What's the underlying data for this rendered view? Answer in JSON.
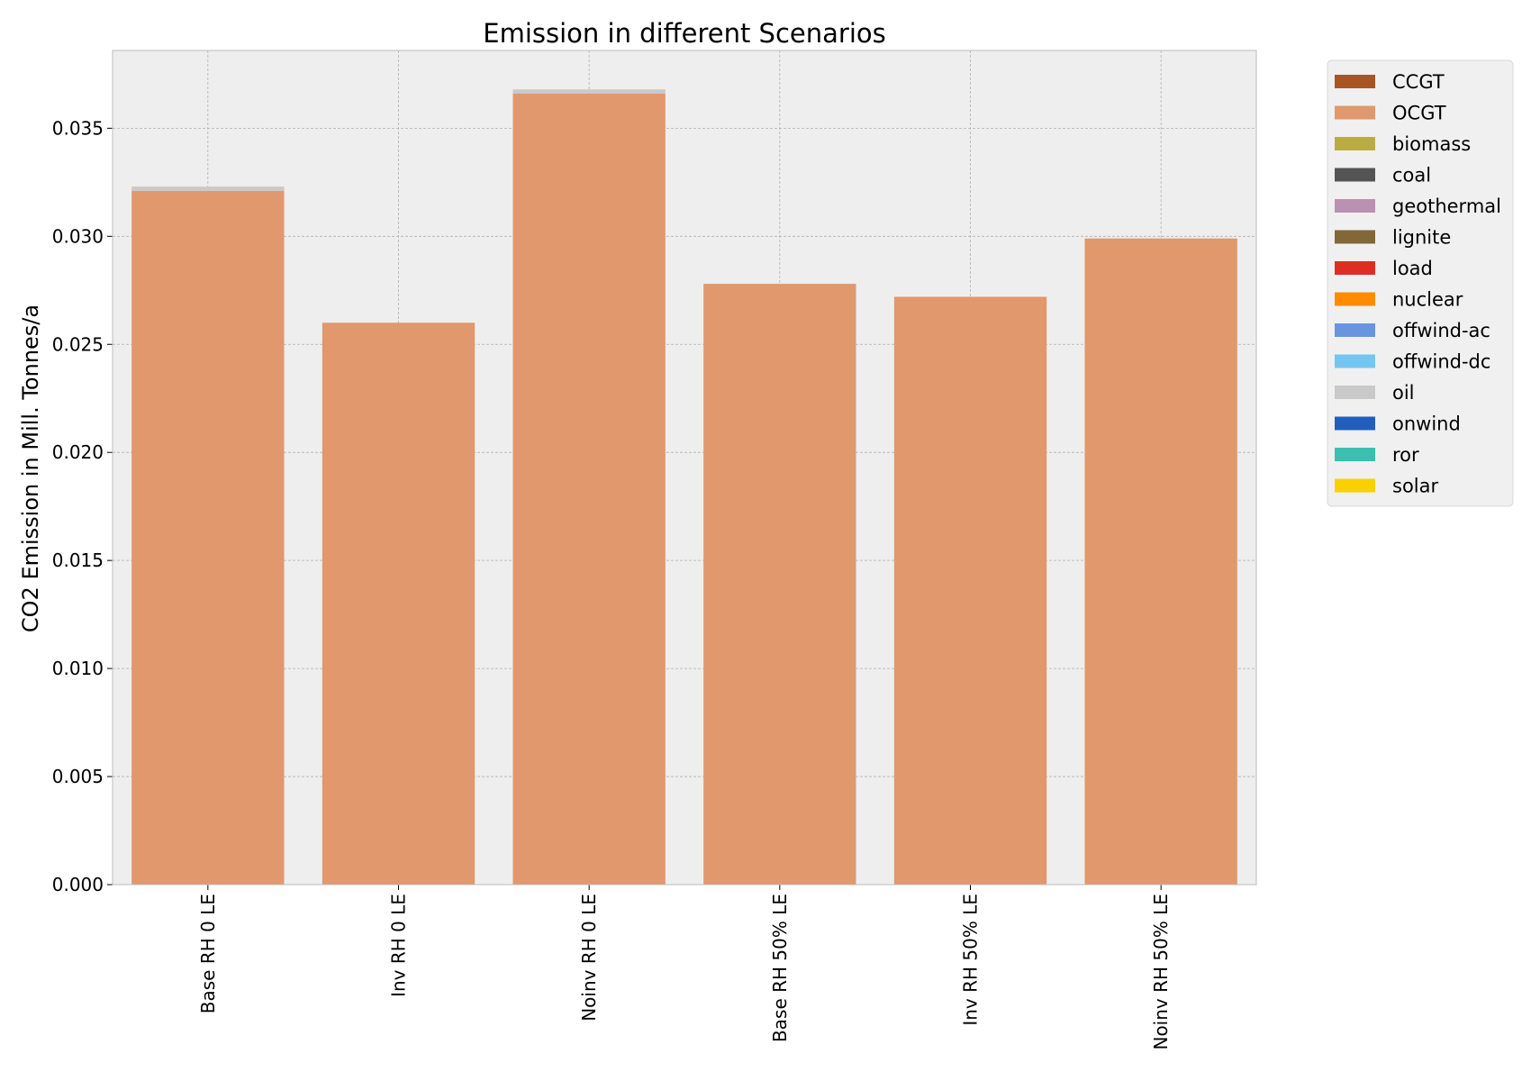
{
  "chart_data": {
    "type": "bar",
    "stacked": true,
    "title": "Emission in different Scenarios",
    "xlabel": "",
    "ylabel": "CO2 Emission in Mill. Tonnes/a",
    "ylim": [
      0,
      0.0386
    ],
    "yticks": [
      "0.000",
      "0.005",
      "0.010",
      "0.015",
      "0.020",
      "0.025",
      "0.030",
      "0.035"
    ],
    "grid": true,
    "legend_position": "outside-top-right",
    "categories": [
      "Base RH 0 LE",
      "Inv RH 0 LE",
      "Noinv RH 0 LE",
      "Base RH 50% LE",
      "Inv RH 50% LE",
      "Noinv RH 50% LE"
    ],
    "series": [
      {
        "name": "CCGT",
        "color": "#a85522",
        "values": [
          0,
          0,
          0,
          0,
          0,
          0
        ]
      },
      {
        "name": "OCGT",
        "color": "#e0986c",
        "values": [
          0.0321,
          0.026,
          0.0366,
          0.0278,
          0.0272,
          0.0299
        ]
      },
      {
        "name": "biomass",
        "color": "#baac44",
        "values": [
          0,
          0,
          0,
          0,
          0,
          0
        ]
      },
      {
        "name": "coal",
        "color": "#545454",
        "values": [
          0,
          0,
          0,
          0,
          0,
          0
        ]
      },
      {
        "name": "geothermal",
        "color": "#ba91b1",
        "values": [
          0,
          0,
          0,
          0,
          0,
          0
        ]
      },
      {
        "name": "lignite",
        "color": "#826837",
        "values": [
          0,
          0,
          0,
          0,
          0,
          0
        ]
      },
      {
        "name": "load",
        "color": "#dd2e23",
        "values": [
          0,
          0,
          0,
          0,
          0,
          0
        ]
      },
      {
        "name": "nuclear",
        "color": "#ff8c00",
        "values": [
          0,
          0,
          0,
          0,
          0,
          0
        ]
      },
      {
        "name": "offwind-ac",
        "color": "#6895dd",
        "values": [
          0,
          0,
          0,
          0,
          0,
          0
        ]
      },
      {
        "name": "offwind-dc",
        "color": "#74c6f2",
        "values": [
          0,
          0,
          0,
          0,
          0,
          0
        ]
      },
      {
        "name": "oil",
        "color": "#c9c9c9",
        "values": [
          0.0002,
          0,
          0.0002,
          0,
          0,
          0
        ]
      },
      {
        "name": "onwind",
        "color": "#235ebc",
        "values": [
          0,
          0,
          0,
          0,
          0,
          0
        ]
      },
      {
        "name": "ror",
        "color": "#3dbfb0",
        "values": [
          0,
          0,
          0,
          0,
          0,
          0
        ]
      },
      {
        "name": "solar",
        "color": "#f9d002",
        "values": [
          0,
          0,
          0,
          0,
          0,
          0
        ]
      }
    ],
    "colors": {
      "plot_background": "#eeeeee",
      "legend_background": "#f0f0f0",
      "spine": "#bcbcbc"
    }
  }
}
